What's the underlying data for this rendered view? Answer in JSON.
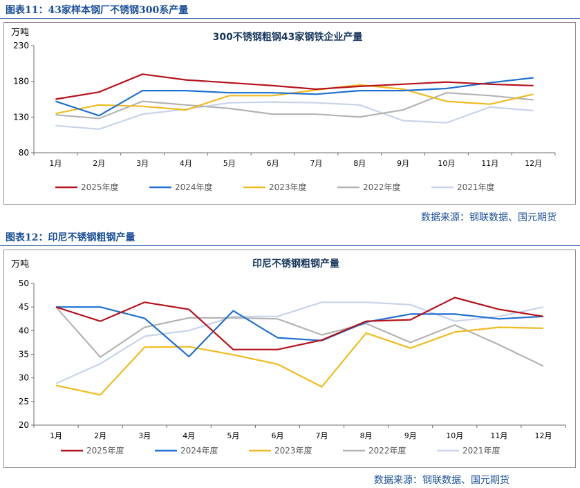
{
  "figure11": {
    "heading": "图表11：43家样本钢厂不锈钢300系产量",
    "source": "数据来源：钢联数据、国元期货"
  },
  "figure12": {
    "heading": "图表12：印尼不锈钢粗钢产量",
    "source": "数据来源：钢联数据、国元期货"
  },
  "colors": {
    "2025年度": "#b5121b",
    "2024年度": "#1f6fd1",
    "2023年度": "#f0bb1e",
    "2022年度": "#b3b3b3",
    "2021年度": "#c7d3ec"
  },
  "chart_data": [
    {
      "type": "line",
      "title": "300不锈钢粗钢43家钢铁企业产量",
      "ylabel": "万吨",
      "xlabel": "",
      "categories": [
        "1月",
        "2月",
        "3月",
        "4月",
        "5月",
        "6月",
        "7月",
        "8月",
        "9月",
        "10月",
        "11月",
        "12月"
      ],
      "ylim": [
        80,
        230
      ],
      "yticks": [
        80,
        130,
        180,
        230
      ],
      "legend_position": "bottom",
      "series": [
        {
          "name": "2025年度",
          "values": [
            155,
            165,
            190,
            182,
            178,
            174,
            169,
            173,
            176,
            179,
            176,
            174
          ]
        },
        {
          "name": "2024年度",
          "values": [
            152,
            132,
            167,
            167,
            164,
            164,
            162,
            167,
            167,
            170,
            178,
            185
          ]
        },
        {
          "name": "2023年度",
          "values": [
            135,
            147,
            145,
            140,
            160,
            160,
            168,
            175,
            169,
            152,
            148,
            162
          ]
        },
        {
          "name": "2022年度",
          "values": [
            133,
            128,
            152,
            147,
            142,
            134,
            134,
            130,
            140,
            164,
            160,
            154
          ]
        },
        {
          "name": "2021年度",
          "values": [
            118,
            113,
            134,
            141,
            150,
            151,
            150,
            147,
            125,
            122,
            144,
            139
          ]
        }
      ]
    },
    {
      "type": "line",
      "title": "印尼不锈钢粗钢产量",
      "ylabel": "万吨",
      "xlabel": "",
      "categories": [
        "1月",
        "2月",
        "3月",
        "4月",
        "5月",
        "6月",
        "7月",
        "8月",
        "9月",
        "10月",
        "11月",
        "12月"
      ],
      "ylim": [
        20,
        50
      ],
      "yticks": [
        20,
        25,
        30,
        35,
        40,
        45,
        50
      ],
      "legend_position": "bottom",
      "series": [
        {
          "name": "2025年度",
          "values": [
            45.0,
            42.0,
            46.0,
            44.5,
            36.0,
            36.0,
            38.0,
            42.0,
            42.3,
            47.0,
            44.5,
            43.0
          ]
        },
        {
          "name": "2024年度",
          "values": [
            45.0,
            45.0,
            42.6,
            34.5,
            44.2,
            38.5,
            37.9,
            41.8,
            43.5,
            43.5,
            42.5,
            43.0
          ]
        },
        {
          "name": "2023年度",
          "values": [
            28.4,
            26.4,
            36.5,
            36.6,
            34.9,
            32.9,
            28.1,
            39.5,
            36.3,
            39.7,
            40.7,
            40.5
          ]
        },
        {
          "name": "2022年度",
          "values": [
            45.0,
            34.4,
            40.7,
            42.7,
            42.7,
            42.5,
            39.1,
            41.5,
            37.5,
            41.2,
            37.0,
            32.5
          ]
        },
        {
          "name": "2021年度",
          "values": [
            28.8,
            33.0,
            38.8,
            40.0,
            43.0,
            43.0,
            46.0,
            46.0,
            45.5,
            42.0,
            43.0,
            45.0
          ]
        }
      ]
    }
  ]
}
